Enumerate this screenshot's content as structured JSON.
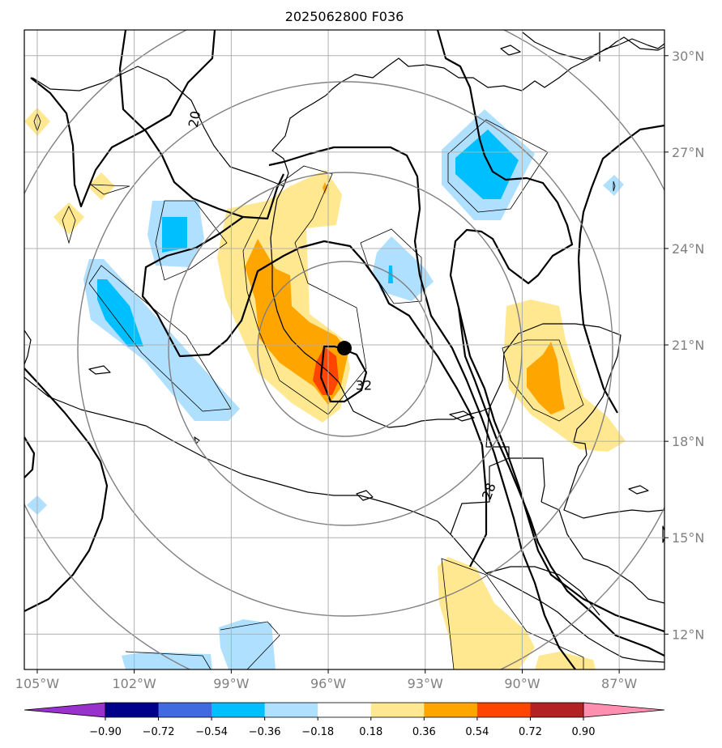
{
  "title": "2025062800 F036",
  "map": {
    "projection": "lat-lon",
    "extent": {
      "lon": [
        -105.4,
        -85.6
      ],
      "lat": [
        10.9,
        30.8
      ]
    },
    "lon_ticks": [
      {
        "value": -105,
        "label": "105°W"
      },
      {
        "value": -102,
        "label": "102°W"
      },
      {
        "value": -99,
        "label": "99°W"
      },
      {
        "value": -96,
        "label": "96°W"
      },
      {
        "value": -93,
        "label": "93°W"
      },
      {
        "value": -90,
        "label": "90°W"
      },
      {
        "value": -87,
        "label": "87°W"
      }
    ],
    "lat_ticks": [
      {
        "value": 30,
        "label": "30°N"
      },
      {
        "value": 27,
        "label": "27°N"
      },
      {
        "value": 24,
        "label": "24°N"
      },
      {
        "value": 21,
        "label": "21°N"
      },
      {
        "value": 18,
        "label": "18°N"
      },
      {
        "value": 15,
        "label": "15°N"
      },
      {
        "value": 12,
        "label": "12°N"
      }
    ],
    "grid": true,
    "storm_center": {
      "lon": -95.5,
      "lat": 20.9
    },
    "range_rings_deg": [
      2.7,
      5.5,
      8.2
    ],
    "contour_labels": [
      {
        "text": "20",
        "lon": -100.0,
        "lat": 28.0
      },
      {
        "text": "32",
        "lon": -94.9,
        "lat": 19.6
      },
      {
        "text": "28",
        "lon": -90.9,
        "lat": 16.4
      }
    ]
  },
  "colorbar": {
    "ticks": [
      "−0.90",
      "−0.72",
      "−0.54",
      "−0.36",
      "−0.18",
      "0.18",
      "0.36",
      "0.54",
      "0.72",
      "0.90"
    ],
    "colors": [
      "#9932cc",
      "#00008b",
      "#4169e1",
      "#00bfff",
      "#b0e0ff",
      "#ffffff",
      "#ffe88f",
      "#ffa500",
      "#ff4500",
      "#b22222",
      "#ff8fb0"
    ],
    "extend_low_color": "#9932cc",
    "extend_high_color": "#ff8fb0"
  }
}
